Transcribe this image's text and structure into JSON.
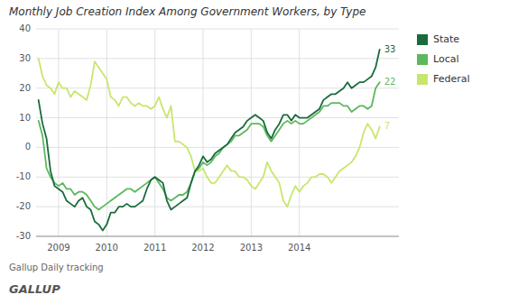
{
  "chart_data": {
    "type": "line",
    "title": "Monthly Job Creation Index Among Government Workers, by Type",
    "subtitle": "Gallup Daily tracking",
    "source": "GALLUP",
    "x": [
      2008.5833,
      2008.6667,
      2008.75,
      2008.8333,
      2008.9167,
      2009,
      2009.0833,
      2009.1667,
      2009.25,
      2009.3333,
      2009.4167,
      2009.5,
      2009.5833,
      2009.6667,
      2009.75,
      2009.8333,
      2009.9167,
      2010,
      2010.0833,
      2010.1667,
      2010.25,
      2010.3333,
      2010.4167,
      2010.5,
      2010.5833,
      2010.6667,
      2010.75,
      2010.8333,
      2010.9167,
      2011,
      2011.0833,
      2011.1667,
      2011.25,
      2011.3333,
      2011.4167,
      2011.5,
      2011.5833,
      2011.6667,
      2011.75,
      2011.8333,
      2011.9167,
      2012,
      2012.0833,
      2012.1667,
      2012.25,
      2012.3333,
      2012.4167,
      2012.5,
      2012.5833,
      2012.6667,
      2012.75,
      2012.8333,
      2012.9167,
      2013,
      2013.0833,
      2013.1667,
      2013.25,
      2013.3333,
      2013.4167,
      2013.5,
      2013.5833,
      2013.6667,
      2013.75,
      2013.8333,
      2013.9167,
      2014,
      2014.0833,
      2014.1667,
      2014.25,
      2014.3333,
      2014.4167,
      2014.5,
      2014.5833,
      2014.6667,
      2014.75,
      2014.8333,
      2014.9167,
      2015,
      2015.0833,
      2015.1667,
      2015.25,
      2015.3333,
      2015.4167,
      2015.5,
      2015.5833,
      2015.6667
    ],
    "series": [
      {
        "name": "State",
        "color": "#1a6b3c",
        "values": [
          16,
          8,
          3,
          -8,
          -13,
          -14,
          -15,
          -18,
          -19,
          -20,
          -18,
          -17,
          -20,
          -21,
          -25,
          -26,
          -28,
          -26,
          -22,
          -22,
          -20,
          -20,
          -19,
          -20,
          -20,
          -19,
          -18,
          -14,
          -11,
          -10,
          -11,
          -12,
          -18,
          -21,
          -20,
          -19,
          -18,
          -17,
          -12,
          -8,
          -6,
          -3,
          -5,
          -4,
          -2,
          -1,
          0,
          1,
          3,
          5,
          6,
          7,
          9,
          10,
          11,
          10,
          9,
          5,
          3,
          6,
          8,
          11,
          11,
          9,
          11,
          10,
          10,
          10,
          11,
          12,
          13,
          16,
          17,
          18,
          18,
          19,
          20,
          22,
          20,
          21,
          22,
          22,
          23,
          24,
          27,
          33
        ]
      },
      {
        "name": "Local",
        "color": "#5cb85c",
        "values": [
          9,
          4,
          -7,
          -10,
          -12,
          -13,
          -12,
          -14,
          -14,
          -16,
          -15,
          -15,
          -16,
          -18,
          -20,
          -21,
          -20,
          -19,
          -18,
          -17,
          -16,
          -15,
          -14,
          -14,
          -15,
          -14,
          -13,
          -12,
          -11,
          -10,
          -12,
          -14,
          -17,
          -18,
          -17,
          -16,
          -16,
          -15,
          -12,
          -8,
          -7,
          -5,
          -6,
          -5,
          -3,
          -2,
          0,
          1,
          2,
          4,
          4,
          5,
          6,
          8,
          8,
          8,
          7,
          4,
          2,
          4,
          6,
          8,
          9,
          8,
          9,
          8,
          8,
          9,
          10,
          11,
          12,
          14,
          14,
          15,
          15,
          15,
          14,
          14,
          12,
          13,
          14,
          14,
          13,
          14,
          20,
          22
        ]
      },
      {
        "name": "Federal",
        "color": "#c8e66c",
        "values": [
          30,
          24,
          21,
          20,
          18,
          22,
          20,
          20,
          17,
          19,
          18,
          17,
          16,
          21,
          29,
          27,
          25,
          23,
          17,
          16,
          14,
          17,
          17,
          15,
          14,
          15,
          14,
          14,
          13,
          14,
          17,
          13,
          10,
          14,
          2,
          2,
          1,
          0,
          -3,
          -8,
          -8,
          -7,
          -10,
          -12,
          -12,
          -10,
          -8,
          -6,
          -8,
          -8,
          -10,
          -10,
          -11,
          -13,
          -14,
          -12,
          -10,
          -5,
          -8,
          -10,
          -12,
          -18,
          -20,
          -16,
          -13,
          -15,
          -13,
          -12,
          -10,
          -10,
          -9,
          -9,
          -10,
          -12,
          -10,
          -8,
          -7,
          -6,
          -5,
          -3,
          0,
          5,
          8,
          6,
          3,
          7
        ]
      }
    ],
    "annotations": [
      {
        "text": "33",
        "x": 2015.6667,
        "y": 33,
        "color": "#1a6b3c"
      },
      {
        "text": "22",
        "x": 2015.6667,
        "y": 22,
        "color": "#5cb85c"
      },
      {
        "text": "7",
        "x": 2015.6667,
        "y": 7,
        "color": "#c8e66c"
      }
    ],
    "xlim": [
      2008.5333,
      2016.0667
    ],
    "xticks": [
      2009,
      2010,
      2011,
      2012,
      2013,
      2014
    ],
    "ylim": [
      -30,
      40
    ],
    "yticks": [
      -30,
      -20,
      -10,
      0,
      10,
      20,
      30,
      40
    ],
    "grid": true,
    "legend": "right"
  }
}
